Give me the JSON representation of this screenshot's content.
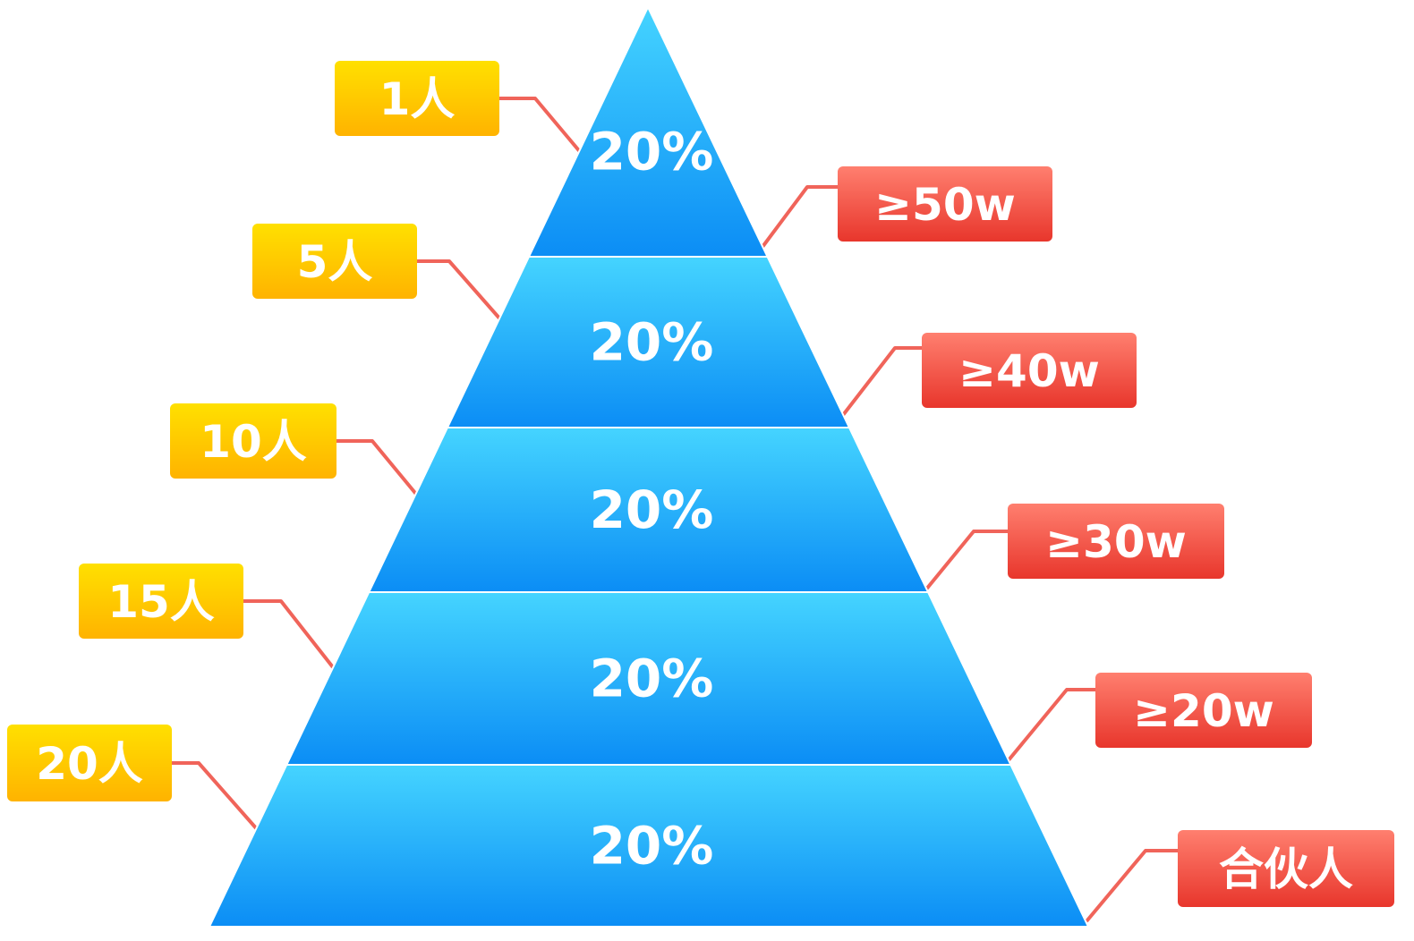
{
  "diagram": {
    "type": "pyramid",
    "colors": {
      "tier_top": "#45d4ff",
      "tier_bottom": "#0b8df5",
      "left_tag_top": "#ffe000",
      "left_tag_bottom": "#ffb300",
      "right_tag_top": "#ff7f6f",
      "right_tag_bottom": "#e8362c",
      "connector": "#f0645a"
    },
    "tiers": [
      {
        "value": "20%",
        "people": "1人",
        "threshold": "≥50w"
      },
      {
        "value": "20%",
        "people": "5人",
        "threshold": "≥40w"
      },
      {
        "value": "20%",
        "people": "10人",
        "threshold": "≥30w"
      },
      {
        "value": "20%",
        "people": "15人",
        "threshold": "≥20w"
      },
      {
        "value": "20%",
        "people": "20人",
        "threshold": "合伙人"
      }
    ]
  }
}
